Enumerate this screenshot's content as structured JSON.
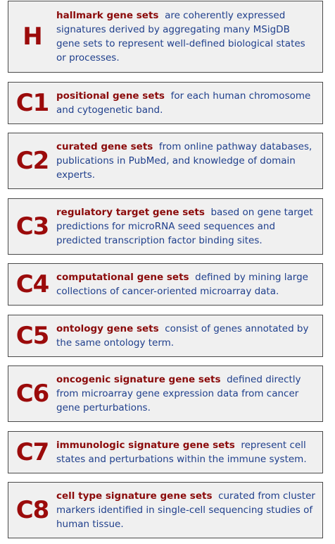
{
  "collections": [
    {
      "code": "H",
      "title": "hallmark gene sets",
      "text": "are coherently expressed signatures derived by aggregating many MSigDB gene sets to represent well-defined biological states or processes."
    },
    {
      "code": "C1",
      "title": "positional gene sets",
      "text": "for each human chromosome and cytogenetic band."
    },
    {
      "code": "C2",
      "title": "curated gene sets",
      "text": "from online pathway databases, publications in PubMed, and knowledge of domain experts."
    },
    {
      "code": "C3",
      "title": "regulatory target gene sets",
      "text": "based on gene target predictions for microRNA seed sequences and predicted transcription factor binding sites."
    },
    {
      "code": "C4",
      "title": "computational gene sets",
      "text": "defined by mining large collections of cancer-oriented microarray data."
    },
    {
      "code": "C5",
      "title": "ontology gene sets",
      "text": "consist of genes annotated by the same ontology term."
    },
    {
      "code": "C6",
      "title": "oncogenic signature gene sets",
      "text": "defined directly from microarray gene expression data from cancer gene perturbations."
    },
    {
      "code": "C7",
      "title": "immunologic signature gene sets",
      "text": "represent cell states and perturbations within the immune system."
    },
    {
      "code": "C8",
      "title": "cell type signature gene sets",
      "text": "curated from cluster markers identified in single-cell sequencing studies of human tissue."
    }
  ]
}
